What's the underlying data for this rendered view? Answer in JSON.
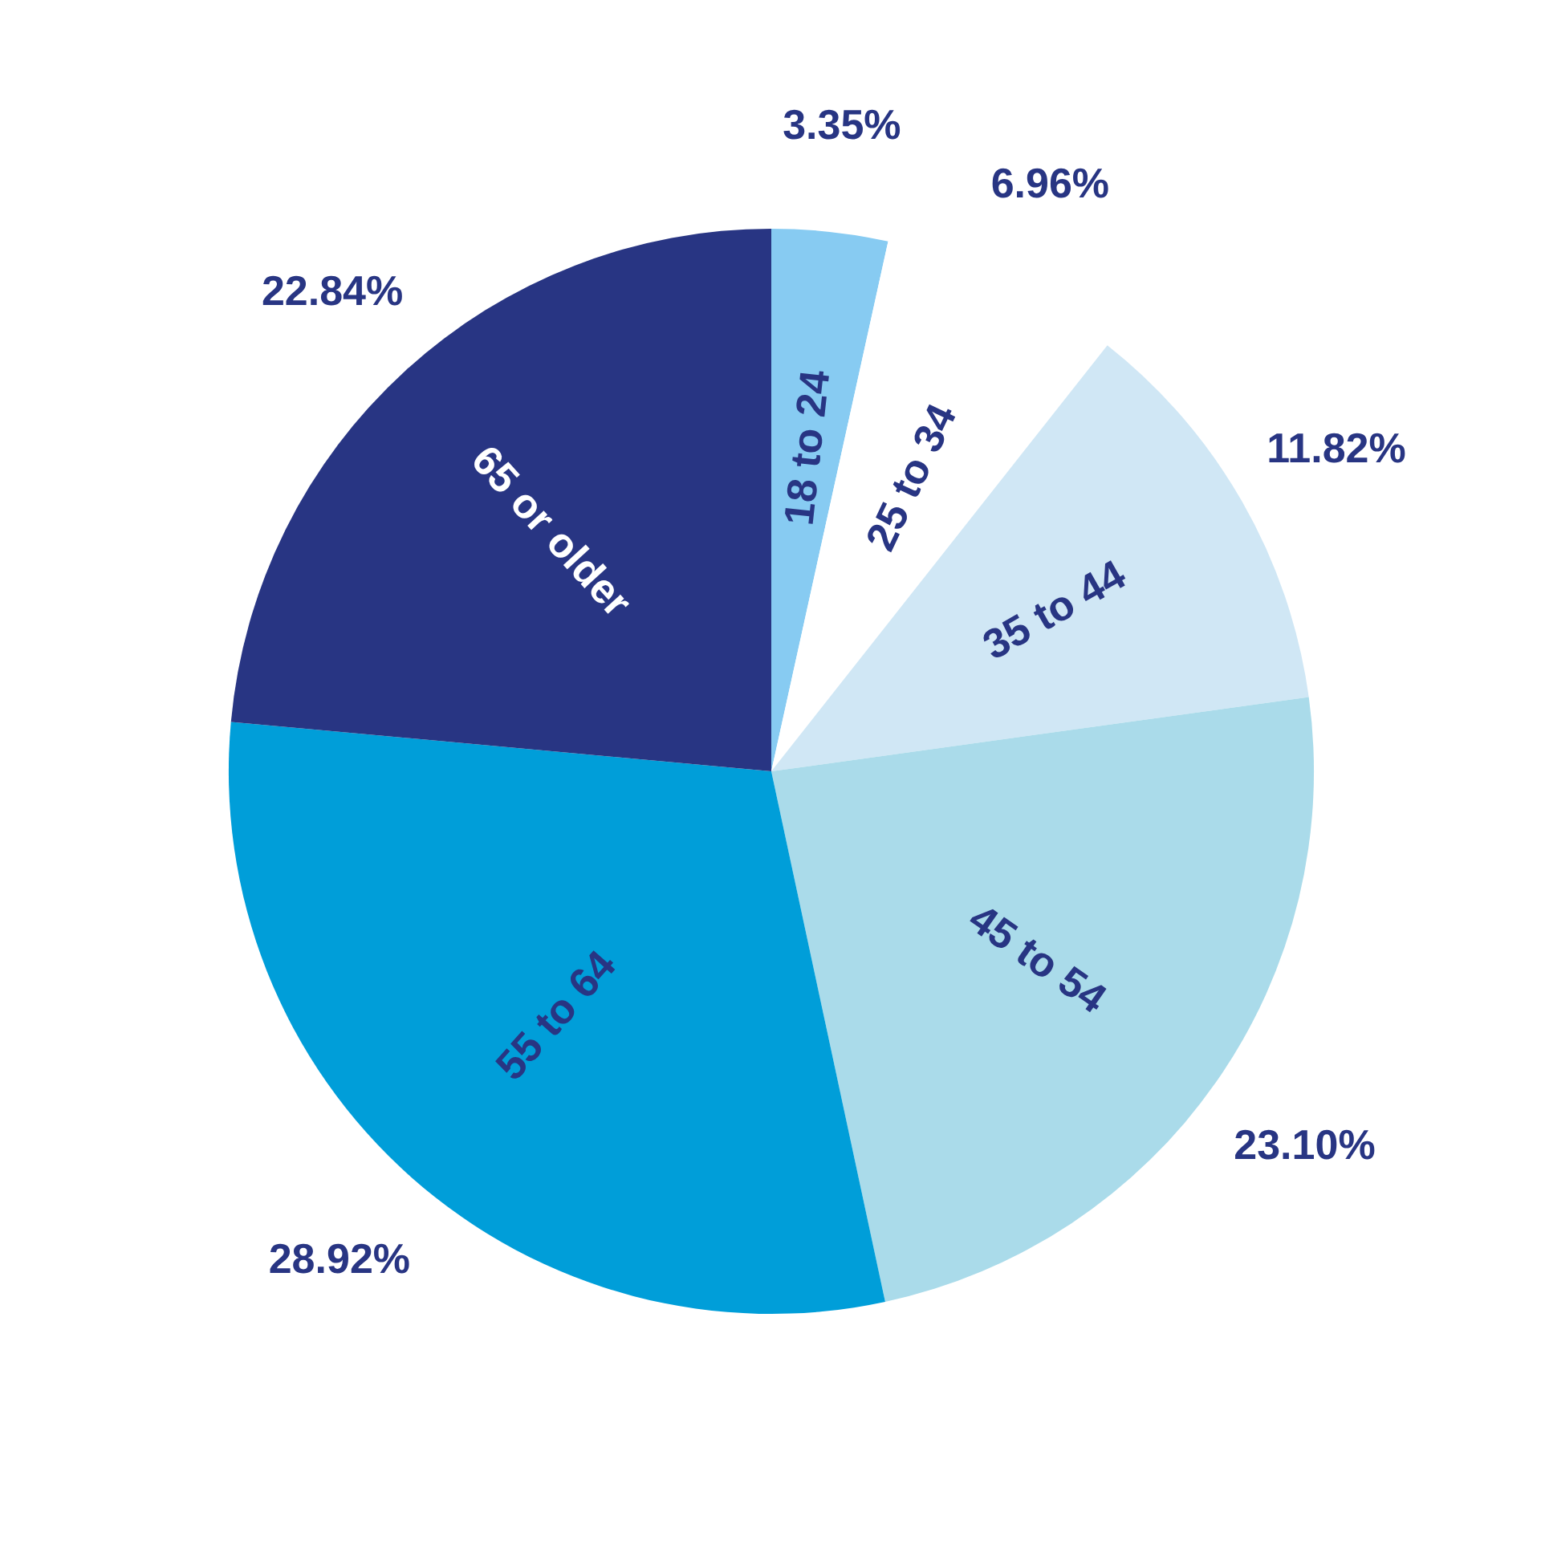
{
  "chart_data": {
    "type": "pie",
    "categories": [
      "18 to 24",
      "25 to 34",
      "35 to 44",
      "45 to 54",
      "55 to 64",
      "65 or older"
    ],
    "values": [
      3.35,
      6.96,
      11.82,
      23.1,
      28.92,
      22.84
    ],
    "colors": [
      "#87cbf2",
      "#ffffff",
      "#d0e7f5",
      "#aadbea",
      "#009ed9",
      "#283583"
    ],
    "value_labels": [
      "3.35%",
      "6.96%",
      "11.82%",
      "23.10%",
      "28.92%",
      "22.84%"
    ]
  }
}
